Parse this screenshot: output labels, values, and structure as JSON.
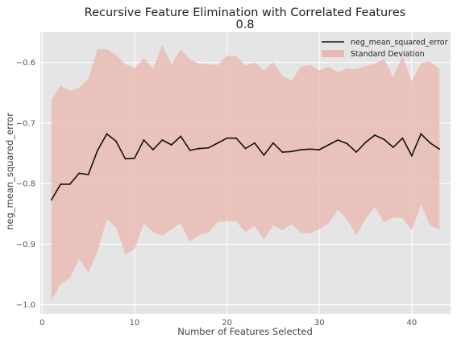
{
  "chart_data": {
    "type": "line",
    "title": "Recursive Feature Elimination with Correlated Features",
    "subtitle": "0.8",
    "xlabel": "Number of Features Selected",
    "ylabel": "neg_mean_squared_error",
    "xlim": [
      -0.2,
      44.2
    ],
    "ylim": [
      -1.015,
      -0.55
    ],
    "x_ticks": [
      0,
      10,
      20,
      30,
      40
    ],
    "y_ticks": [
      -1.0,
      -0.9,
      -0.8,
      -0.7,
      -0.6
    ],
    "x_tick_labels": [
      "0",
      "10",
      "20",
      "30",
      "40"
    ],
    "y_tick_labels": [
      "−1.0",
      "−0.9",
      "−0.8",
      "−0.7",
      "−0.6"
    ],
    "grid": true,
    "legend_position": "top-right",
    "x": [
      1,
      2,
      3,
      4,
      5,
      6,
      7,
      8,
      9,
      10,
      11,
      12,
      13,
      14,
      15,
      16,
      17,
      18,
      19,
      20,
      21,
      22,
      23,
      24,
      25,
      26,
      27,
      28,
      29,
      30,
      31,
      32,
      33,
      34,
      35,
      36,
      37,
      38,
      39,
      40,
      41,
      42,
      43
    ],
    "series": [
      {
        "name": "neg_mean_squared_error",
        "color": "#111111",
        "values": [
          -0.827,
          -0.801,
          -0.801,
          -0.783,
          -0.785,
          -0.745,
          -0.718,
          -0.73,
          -0.759,
          -0.758,
          -0.728,
          -0.744,
          -0.728,
          -0.736,
          -0.722,
          -0.745,
          -0.742,
          -0.741,
          -0.733,
          -0.725,
          -0.725,
          -0.742,
          -0.733,
          -0.753,
          -0.733,
          -0.748,
          -0.747,
          -0.744,
          -0.743,
          -0.744,
          -0.736,
          -0.728,
          -0.734,
          -0.748,
          -0.732,
          -0.72,
          -0.727,
          -0.74,
          -0.725,
          -0.754,
          -0.718,
          -0.733,
          -0.743
        ]
      }
    ],
    "band": {
      "name": "Standard Deviation",
      "color": "#e8b9b0",
      "upper": [
        -0.662,
        -0.638,
        -0.647,
        -0.642,
        -0.627,
        -0.578,
        -0.578,
        -0.588,
        -0.603,
        -0.609,
        -0.593,
        -0.61,
        -0.572,
        -0.603,
        -0.578,
        -0.595,
        -0.602,
        -0.603,
        -0.604,
        -0.589,
        -0.589,
        -0.605,
        -0.6,
        -0.613,
        -0.6,
        -0.622,
        -0.63,
        -0.607,
        -0.604,
        -0.613,
        -0.607,
        -0.616,
        -0.61,
        -0.611,
        -0.606,
        -0.602,
        -0.594,
        -0.625,
        -0.589,
        -0.631,
        -0.601,
        -0.598,
        -0.611
      ],
      "lower": [
        -0.993,
        -0.966,
        -0.956,
        -0.924,
        -0.947,
        -0.912,
        -0.858,
        -0.872,
        -0.917,
        -0.908,
        -0.866,
        -0.88,
        -0.886,
        -0.875,
        -0.866,
        -0.896,
        -0.885,
        -0.881,
        -0.863,
        -0.862,
        -0.862,
        -0.88,
        -0.87,
        -0.892,
        -0.869,
        -0.877,
        -0.867,
        -0.881,
        -0.882,
        -0.875,
        -0.866,
        -0.843,
        -0.859,
        -0.885,
        -0.858,
        -0.839,
        -0.864,
        -0.856,
        -0.857,
        -0.877,
        -0.835,
        -0.869,
        -0.876
      ]
    },
    "style": {
      "plot_background": "#e5e5e5",
      "grid_color": "#ffffff",
      "text_color": "#222222"
    }
  }
}
